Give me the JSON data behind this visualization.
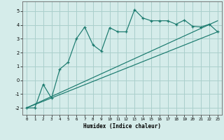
{
  "title": "",
  "xlabel": "Humidex (Indice chaleur)",
  "ylabel": "",
  "background_color": "#d5ecea",
  "grid_color": "#aacfcc",
  "line_color": "#1a7a6e",
  "xlim": [
    -0.5,
    23.5
  ],
  "ylim": [
    -2.5,
    5.7
  ],
  "yticks": [
    -2,
    -1,
    0,
    1,
    2,
    3,
    4,
    5
  ],
  "xticks": [
    0,
    1,
    2,
    3,
    4,
    5,
    6,
    7,
    8,
    9,
    10,
    11,
    12,
    13,
    14,
    15,
    16,
    17,
    18,
    19,
    20,
    21,
    22,
    23
  ],
  "main_x": [
    0,
    1,
    2,
    3,
    4,
    5,
    6,
    7,
    8,
    9,
    10,
    11,
    12,
    13,
    14,
    15,
    16,
    17,
    18,
    19,
    20,
    21,
    22,
    23
  ],
  "main_y": [
    -2,
    -2,
    -0.3,
    -1.3,
    0.8,
    1.3,
    3.0,
    3.85,
    2.55,
    2.1,
    3.8,
    3.5,
    3.5,
    5.1,
    4.5,
    4.3,
    4.3,
    4.3,
    4.05,
    4.35,
    3.9,
    3.85,
    4.05,
    3.5
  ],
  "line1_x": [
    0,
    23
  ],
  "line1_y": [
    -2,
    3.5
  ],
  "line2_x": [
    0,
    23
  ],
  "line2_y": [
    -2,
    4.3
  ]
}
